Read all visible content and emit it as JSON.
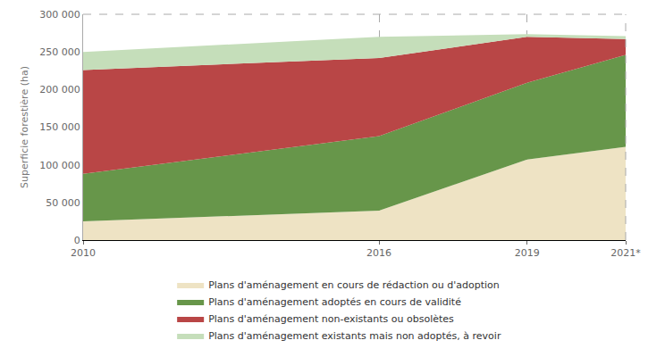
{
  "chart_data": {
    "type": "area",
    "stacked": true,
    "y_label": "Superficie forestière (ha)",
    "x": [
      2010,
      2016,
      2019,
      2021
    ],
    "xlim": [
      2010,
      2021
    ],
    "xticks": [
      2010,
      2016,
      2019,
      {
        "value": 2021,
        "label": "2021*"
      }
    ],
    "ylim": [
      0,
      300000
    ],
    "yticks": [
      0,
      {
        "value": 50000,
        "label": "50 000"
      },
      {
        "value": 100000,
        "label": "100 000"
      },
      {
        "value": 150000,
        "label": "150 000"
      },
      {
        "value": 200000,
        "label": "200 000"
      },
      {
        "value": 250000,
        "label": "250 000"
      },
      {
        "value": 300000,
        "label": "300 000"
      }
    ],
    "grid": true,
    "legend": "bottom",
    "series": [
      {
        "name": "Plans d'aménagement en cours de rédaction ou d'adoption",
        "color": "#eee3c4",
        "values": [
          25000,
          39000,
          107000,
          124000
        ]
      },
      {
        "name": "Plans d'aménagement adoptés en cours de validité",
        "color": "#67964a",
        "values": [
          63000,
          99000,
          102000,
          122000
        ]
      },
      {
        "name": "Plans d'aménagement non-existants ou obsolètes",
        "color": "#b94646",
        "values": [
          138000,
          104000,
          61000,
          21000
        ]
      },
      {
        "name": "Plans d'aménagement existants mais non adoptés, à revoir",
        "color": "#c5deba",
        "values": [
          24000,
          28000,
          3500,
          4000
        ]
      }
    ]
  }
}
